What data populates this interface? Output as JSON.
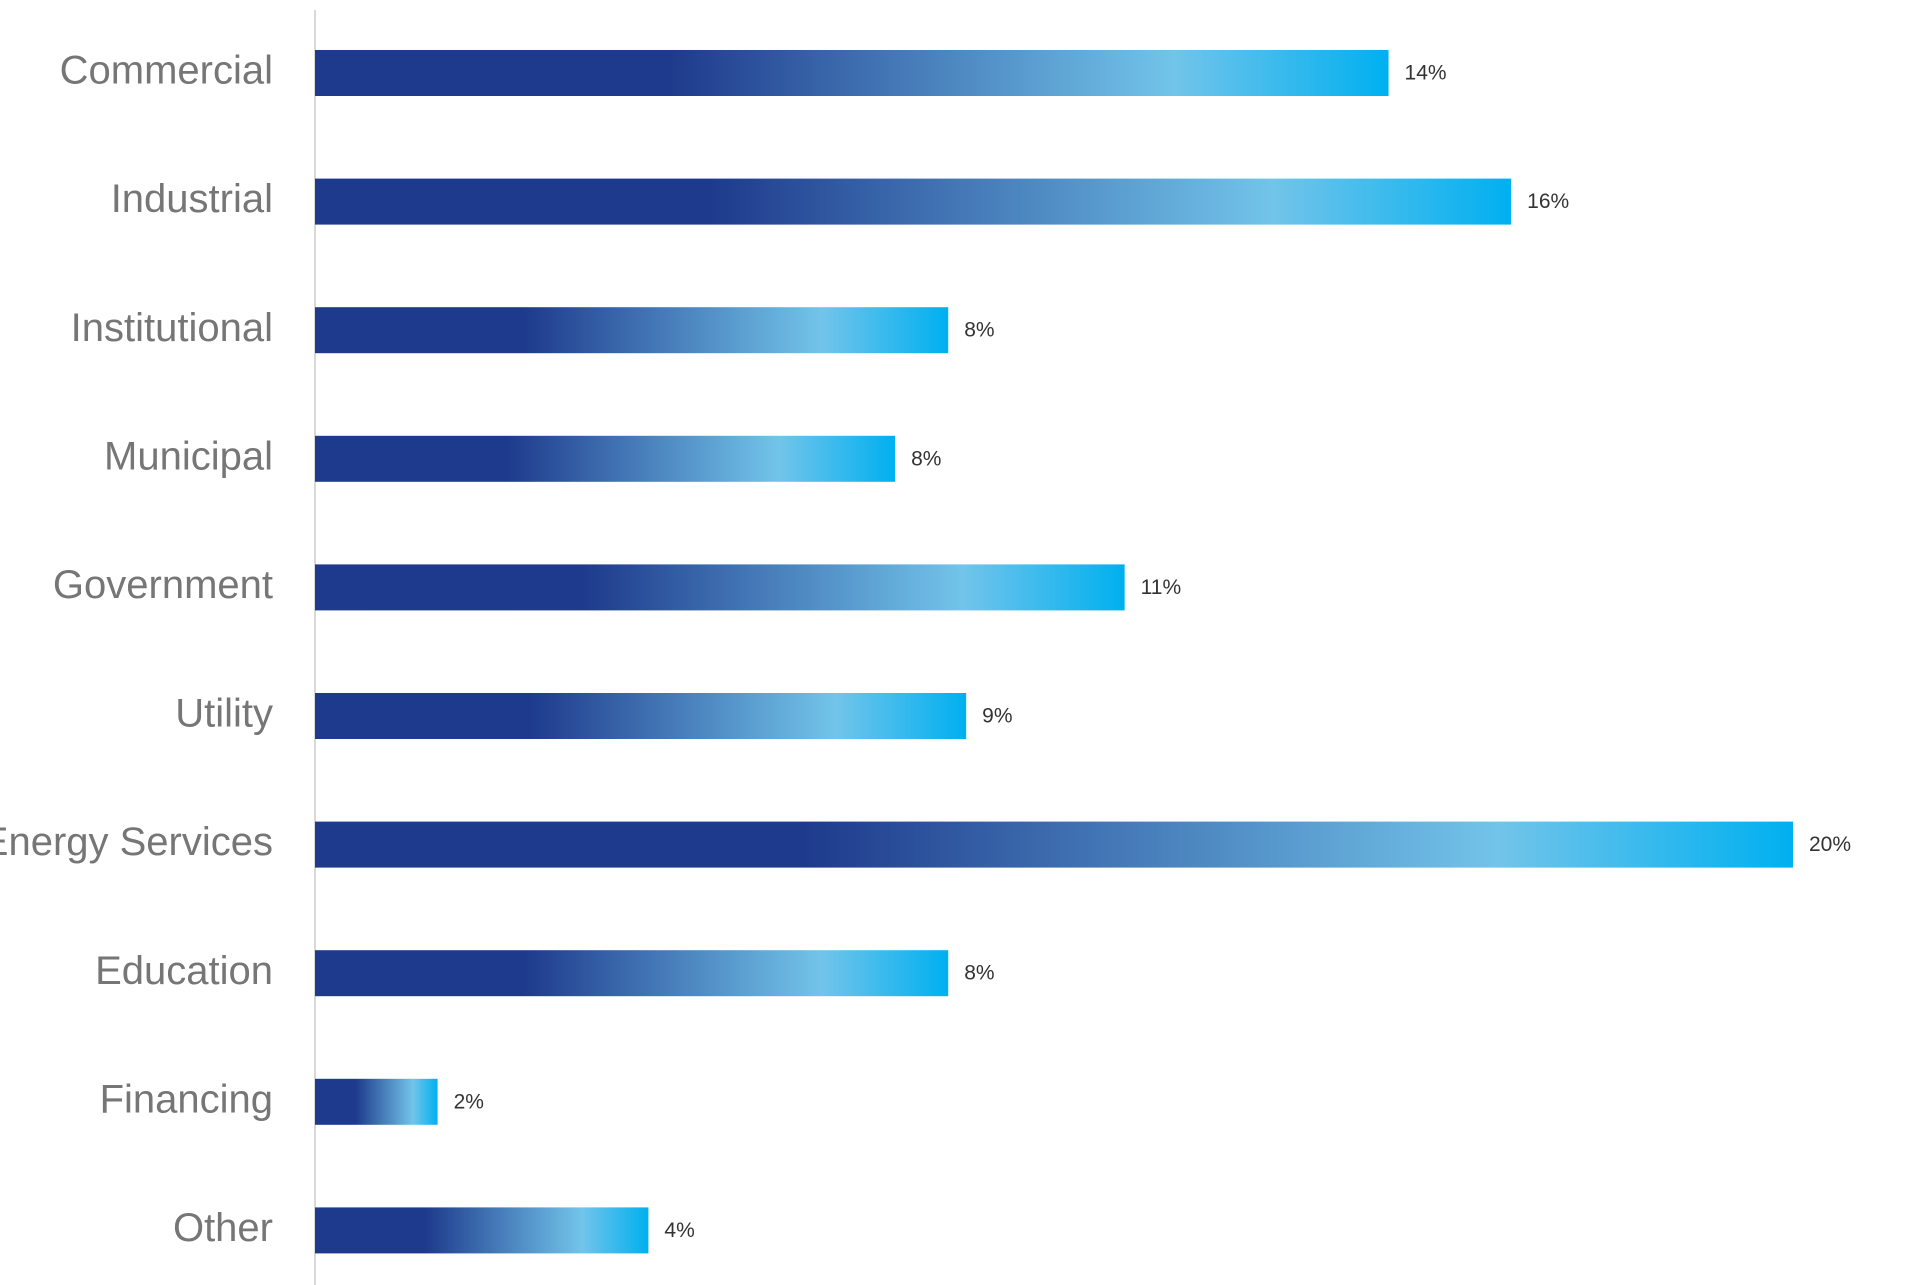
{
  "chart_data": {
    "type": "bar",
    "orientation": "horizontal",
    "categories": [
      "Commercial",
      "Industrial",
      "Institutional",
      "Municipal",
      "Government",
      "Utility",
      "Energy Services",
      "Education",
      "Financing",
      "Other"
    ],
    "values": [
      14.36,
      16.0,
      8.47,
      7.76,
      10.83,
      8.71,
      19.77,
      8.47,
      1.64,
      4.46
    ],
    "value_labels": [
      "14%",
      "16%",
      "8%",
      "8%",
      "11%",
      "9%",
      "20%",
      "8%",
      "2%",
      "4%"
    ],
    "colors": [
      "#1e3a8c",
      "#72c4ea",
      "#00b0f0"
    ]
  }
}
